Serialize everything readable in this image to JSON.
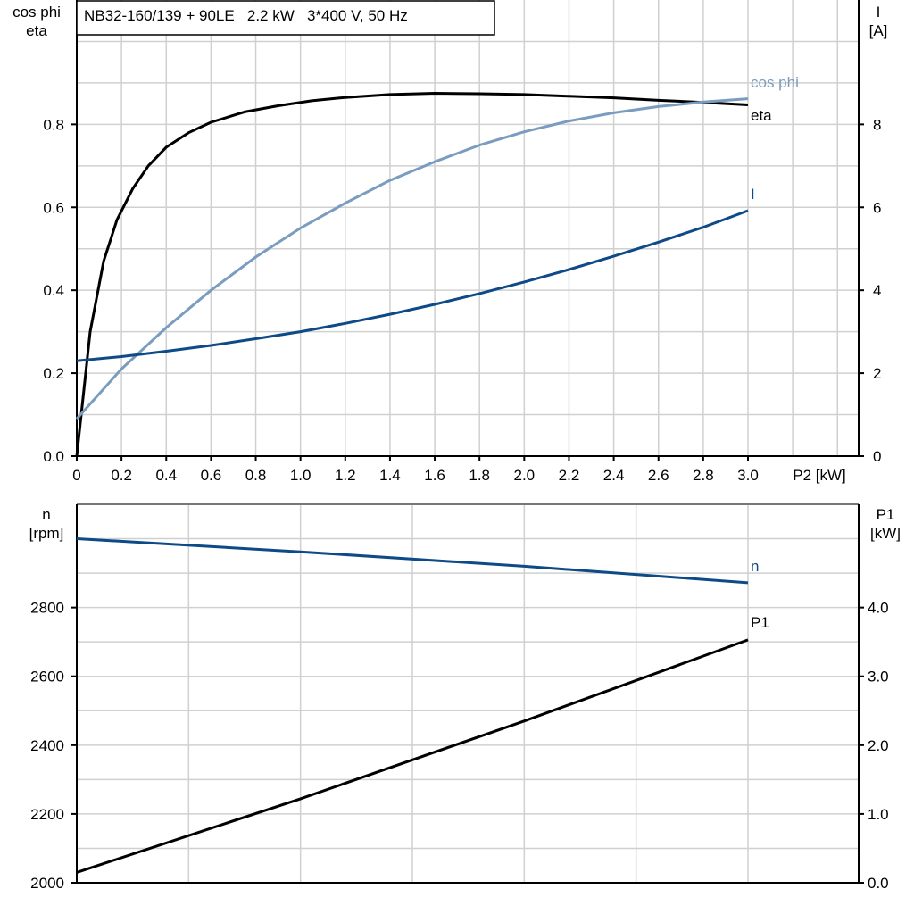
{
  "colors": {
    "eta": "#000000",
    "cos_phi": "#7a9cbf",
    "I": "#0d4a87",
    "n": "#0d4a87",
    "P1": "#000000",
    "grid": "#d0d0d0"
  },
  "chart_data": [
    {
      "type": "line",
      "title": "NB32-160/139 + 90LE   2.2 kW   3*400 V, 50 Hz",
      "xlabel": "P2 [kW]",
      "ylabel_left": [
        "cos phi",
        "eta"
      ],
      "ylabel_right": [
        "I",
        "[A]"
      ],
      "xlim": [
        0,
        3.5
      ],
      "ylim_left": [
        0,
        1.1
      ],
      "ylim_right": [
        0,
        11
      ],
      "grid": true,
      "x_ticks": [
        "0",
        "0.2",
        "0.4",
        "0.6",
        "0.8",
        "1.0",
        "1.2",
        "1.4",
        "1.6",
        "1.8",
        "2.0",
        "2.2",
        "2.4",
        "2.6",
        "2.8",
        "3.0"
      ],
      "y_left_ticks": [
        "0.0",
        "0.2",
        "0.4",
        "0.6",
        "0.8"
      ],
      "y_right_ticks": [
        "0",
        "2",
        "4",
        "6",
        "8"
      ],
      "series": [
        {
          "name": "eta",
          "axis": "left",
          "x": [
            0,
            0.03,
            0.06,
            0.12,
            0.18,
            0.25,
            0.32,
            0.4,
            0.5,
            0.6,
            0.75,
            0.9,
            1.05,
            1.2,
            1.4,
            1.6,
            1.8,
            2.0,
            2.2,
            2.4,
            2.6,
            2.8,
            3.0
          ],
          "y": [
            0,
            0.15,
            0.3,
            0.47,
            0.57,
            0.645,
            0.7,
            0.745,
            0.78,
            0.805,
            0.83,
            0.845,
            0.857,
            0.865,
            0.872,
            0.875,
            0.874,
            0.872,
            0.868,
            0.864,
            0.858,
            0.853,
            0.847
          ]
        },
        {
          "name": "cos phi",
          "axis": "left",
          "x": [
            0,
            0.1,
            0.2,
            0.4,
            0.6,
            0.8,
            1.0,
            1.2,
            1.4,
            1.6,
            1.8,
            2.0,
            2.2,
            2.4,
            2.6,
            2.8,
            3.0
          ],
          "y": [
            0.09,
            0.15,
            0.21,
            0.31,
            0.4,
            0.48,
            0.55,
            0.61,
            0.665,
            0.71,
            0.75,
            0.782,
            0.808,
            0.828,
            0.843,
            0.854,
            0.862
          ]
        },
        {
          "name": "I",
          "axis": "right",
          "x": [
            0,
            0.2,
            0.4,
            0.6,
            0.8,
            1.0,
            1.2,
            1.4,
            1.6,
            1.8,
            2.0,
            2.2,
            2.4,
            2.6,
            2.8,
            3.0
          ],
          "y": [
            2.3,
            2.4,
            2.53,
            2.67,
            2.83,
            3.0,
            3.2,
            3.42,
            3.66,
            3.92,
            4.2,
            4.5,
            4.82,
            5.16,
            5.52,
            5.92
          ]
        }
      ]
    },
    {
      "type": "line",
      "xlim": [
        0,
        3.5
      ],
      "ylabel_left": [
        "n",
        "[rpm]"
      ],
      "ylabel_right": [
        "P1",
        "[kW]"
      ],
      "ylim_left": [
        2000,
        3100
      ],
      "ylim_right": [
        0,
        5.5
      ],
      "grid": true,
      "y_left_ticks": [
        "2000",
        "2200",
        "2400",
        "2600",
        "2800"
      ],
      "y_right_ticks": [
        "0.0",
        "1.0",
        "2.0",
        "3.0",
        "4.0"
      ],
      "series": [
        {
          "name": "n",
          "axis": "left",
          "x": [
            0,
            1.0,
            2.0,
            3.0
          ],
          "y": [
            3000,
            2962,
            2920,
            2872
          ]
        },
        {
          "name": "P1",
          "axis": "right",
          "x": [
            0,
            1.0,
            2.0,
            3.0
          ],
          "y": [
            0.15,
            1.22,
            2.35,
            3.53
          ]
        }
      ]
    }
  ]
}
